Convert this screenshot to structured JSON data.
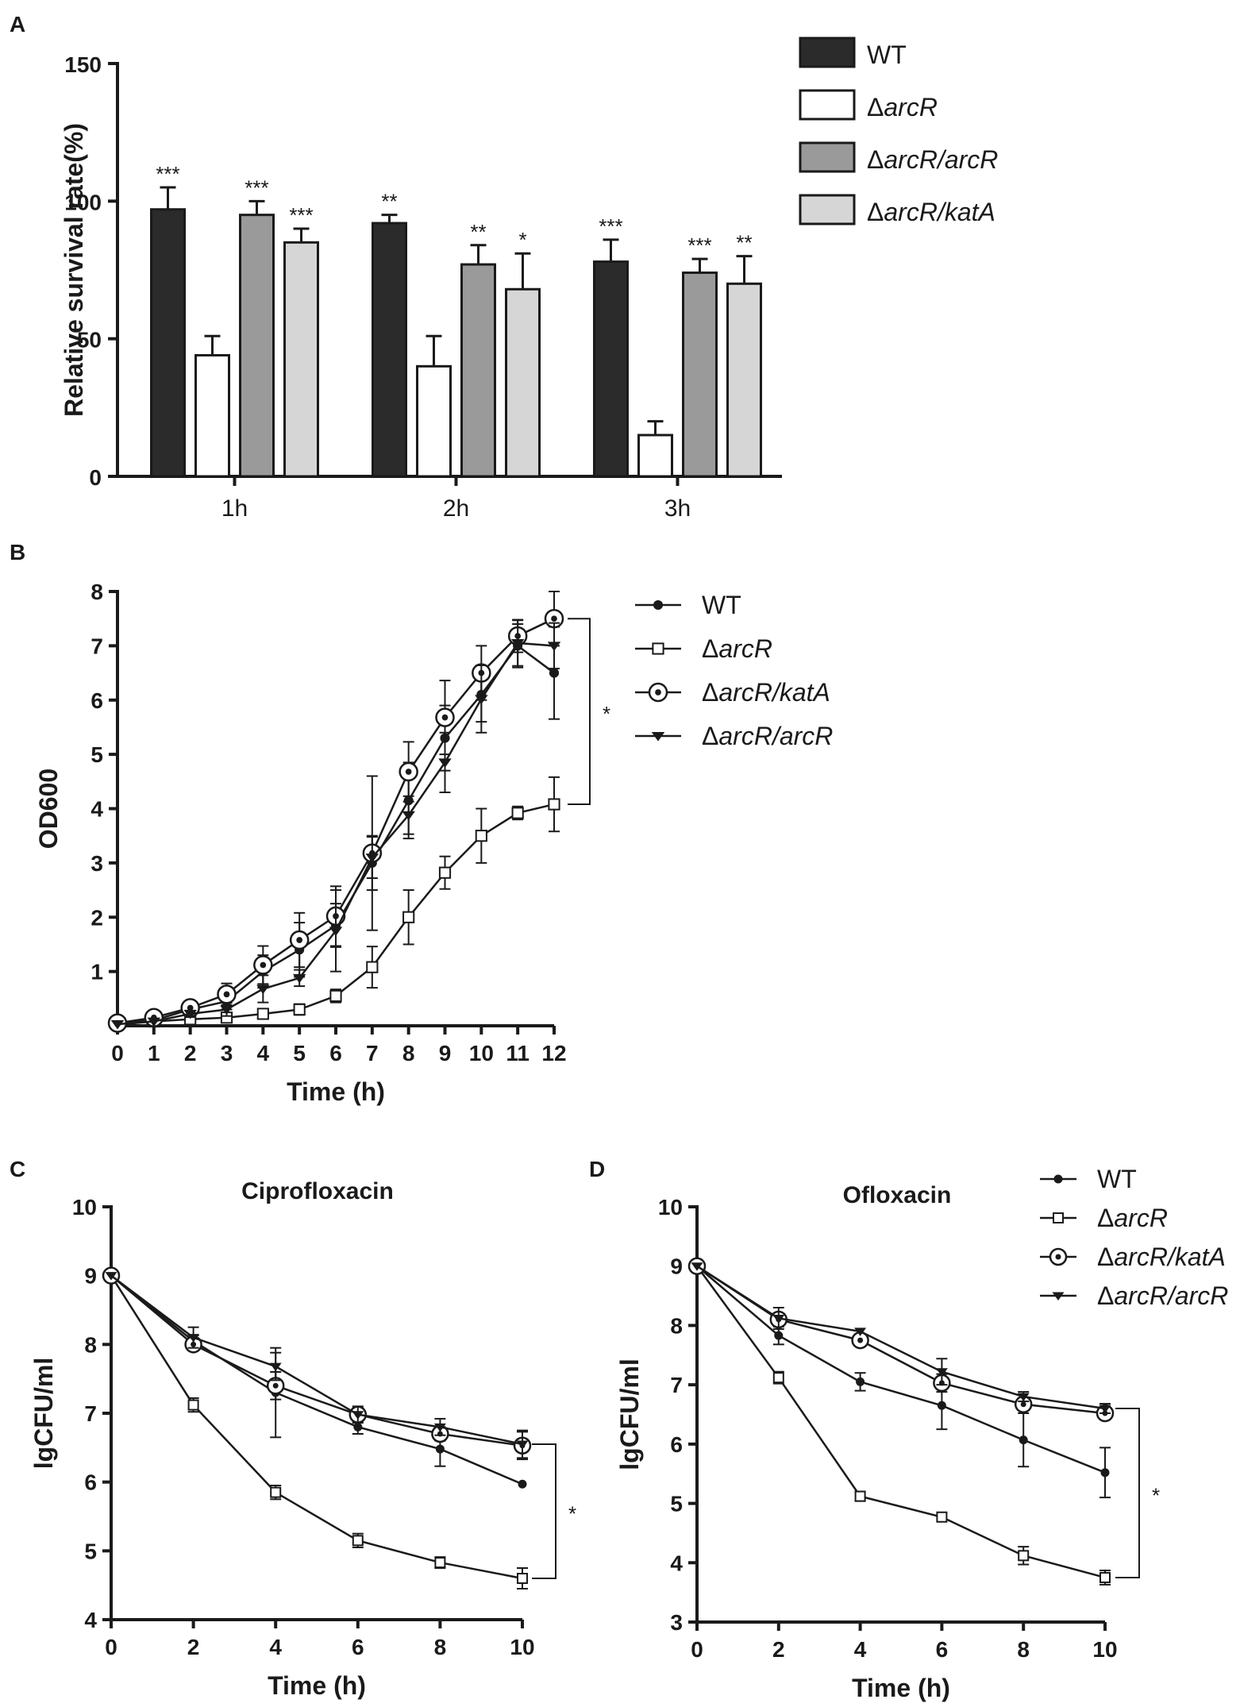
{
  "figure": {
    "panels": {
      "A": "A",
      "B": "B",
      "C": "C",
      "D": "D"
    }
  },
  "chart_data": [
    {
      "id": "A",
      "type": "bar",
      "ylabel": "Relative survival rate(%)",
      "xlabel": "",
      "ylim": [
        0,
        150
      ],
      "yticks": [
        "0",
        "50",
        "100",
        "150"
      ],
      "categories": [
        "1h",
        "2h",
        "3h"
      ],
      "legend_position": "top-right",
      "series": [
        {
          "name": "WT",
          "color": "#2b2b2b",
          "values": [
            97,
            92,
            78
          ],
          "errors": [
            8,
            3,
            8
          ],
          "sig": [
            "***",
            "**",
            "***"
          ]
        },
        {
          "name": "ΔarcR",
          "color": "#ffffff",
          "values": [
            44,
            40,
            15
          ],
          "errors": [
            7,
            11,
            5
          ],
          "sig": [
            "",
            "",
            ""
          ]
        },
        {
          "name": "ΔarcR/arcR",
          "color": "#9a9a9a",
          "values": [
            95,
            77,
            74
          ],
          "errors": [
            5,
            7,
            5
          ],
          "sig": [
            "***",
            "**",
            "***"
          ]
        },
        {
          "name": "ΔarcR/katA",
          "color": "#d6d6d6",
          "values": [
            85,
            68,
            70
          ],
          "errors": [
            5,
            13,
            10
          ],
          "sig": [
            "***",
            "*",
            "**"
          ]
        }
      ]
    },
    {
      "id": "B",
      "type": "line",
      "xlabel": "Time (h)",
      "ylabel": "OD600",
      "xlim": [
        0,
        12
      ],
      "ylim": [
        0,
        8
      ],
      "xticks": [
        "0",
        "1",
        "2",
        "3",
        "4",
        "5",
        "6",
        "7",
        "8",
        "9",
        "10",
        "11",
        "12"
      ],
      "yticks": [
        "1",
        "2",
        "3",
        "4",
        "5",
        "6",
        "7",
        "8"
      ],
      "x": [
        0,
        1,
        2,
        3,
        4,
        5,
        6,
        7,
        8,
        9,
        10,
        11,
        12
      ],
      "legend_position": "top-right",
      "significance": "*",
      "series": [
        {
          "name": "WT",
          "marker": "dot",
          "values": [
            0.05,
            0.1,
            0.3,
            0.45,
            1.0,
            1.4,
            1.85,
            3.0,
            4.15,
            5.3,
            6.1,
            7.0,
            6.5
          ],
          "errors": [
            0.02,
            0.05,
            0.08,
            0.15,
            0.3,
            0.5,
            0.4,
            0.5,
            0.7,
            0.6,
            0.5,
            0.4,
            0.85
          ]
        },
        {
          "name": "ΔarcR",
          "marker": "square",
          "values": [
            0.02,
            0.08,
            0.12,
            0.15,
            0.22,
            0.3,
            0.55,
            1.08,
            2.0,
            2.82,
            3.5,
            3.92,
            4.08
          ],
          "errors": [
            0.02,
            0.03,
            0.05,
            0.08,
            0.08,
            0.1,
            0.12,
            0.38,
            0.5,
            0.3,
            0.5,
            0.12,
            0.5
          ]
        },
        {
          "name": "ΔarcR/katA",
          "marker": "ring",
          "values": [
            0.05,
            0.15,
            0.33,
            0.58,
            1.12,
            1.58,
            2.02,
            3.18,
            4.68,
            5.68,
            6.5,
            7.18,
            7.5
          ],
          "errors": [
            0.02,
            0.05,
            0.08,
            0.2,
            0.35,
            0.5,
            0.55,
            1.42,
            0.55,
            0.68,
            0.5,
            0.3,
            0.5
          ]
        },
        {
          "name": "ΔarcR/arcR",
          "marker": "triangle",
          "values": [
            0.03,
            0.08,
            0.22,
            0.3,
            0.68,
            0.88,
            1.75,
            3.1,
            3.88,
            4.85,
            6.02,
            7.05,
            7.0
          ],
          "errors": [
            0.02,
            0.04,
            0.06,
            0.12,
            0.25,
            0.15,
            0.75,
            0.38,
            0.35,
            0.55,
            0.62,
            0.42,
            0.42
          ]
        }
      ]
    },
    {
      "id": "C",
      "type": "line",
      "title": "Ciprofloxacin",
      "xlabel": "Time (h)",
      "ylabel": "lgCFU/ml",
      "xlim": [
        0,
        10
      ],
      "ylim": [
        4,
        10
      ],
      "xticks": [
        "0",
        "2",
        "4",
        "6",
        "8",
        "10"
      ],
      "yticks": [
        "4",
        "5",
        "6",
        "7",
        "8",
        "9",
        "10"
      ],
      "x": [
        0,
        2,
        4,
        6,
        8,
        10
      ],
      "significance": "*",
      "series": [
        {
          "name": "WT",
          "marker": "dot",
          "values": [
            9.0,
            8.05,
            7.3,
            6.8,
            6.48,
            5.97
          ],
          "errors": [
            0.03,
            0.08,
            0.65,
            0.1,
            0.25,
            0.03
          ]
        },
        {
          "name": "ΔarcR",
          "marker": "square",
          "values": [
            9.0,
            7.12,
            5.85,
            5.15,
            4.83,
            4.6
          ],
          "errors": [
            0.03,
            0.1,
            0.1,
            0.1,
            0.08,
            0.15
          ]
        },
        {
          "name": "ΔarcR/katA",
          "marker": "ring",
          "values": [
            9.0,
            8.0,
            7.4,
            6.98,
            6.7,
            6.53
          ],
          "errors": [
            0.03,
            0.08,
            0.2,
            0.1,
            0.1,
            0.2
          ]
        },
        {
          "name": "ΔarcR/arcR",
          "marker": "triangle",
          "values": [
            9.0,
            8.1,
            7.68,
            6.98,
            6.8,
            6.55
          ],
          "errors": [
            0.03,
            0.15,
            0.2,
            0.12,
            0.12,
            0.2
          ]
        }
      ]
    },
    {
      "id": "D",
      "type": "line",
      "title": "Ofloxacin",
      "xlabel": "Time (h)",
      "ylabel": "lgCFU/ml",
      "xlim": [
        0,
        10
      ],
      "ylim": [
        3,
        10
      ],
      "xticks": [
        "0",
        "2",
        "4",
        "6",
        "8",
        "10"
      ],
      "yticks": [
        "3",
        "4",
        "5",
        "6",
        "7",
        "8",
        "9",
        "10"
      ],
      "x": [
        0,
        2,
        4,
        6,
        8,
        10
      ],
      "legend_position": "top-right",
      "significance": "*",
      "series": [
        {
          "name": "WT",
          "marker": "dot",
          "values": [
            9.0,
            7.83,
            7.05,
            6.65,
            6.07,
            5.52
          ],
          "errors": [
            0.03,
            0.15,
            0.15,
            0.4,
            0.45,
            0.42
          ]
        },
        {
          "name": "ΔarcR",
          "marker": "square",
          "values": [
            9.0,
            7.12,
            5.12,
            4.77,
            4.12,
            3.75
          ],
          "errors": [
            0.03,
            0.1,
            0.08,
            0.05,
            0.15,
            0.12
          ]
        },
        {
          "name": "ΔarcR/katA",
          "marker": "ring",
          "values": [
            9.0,
            8.1,
            7.75,
            7.03,
            6.67,
            6.52
          ],
          "errors": [
            0.03,
            0.1,
            0.1,
            0.15,
            0.1,
            0.1
          ]
        },
        {
          "name": "ΔarcR/arcR",
          "marker": "triangle",
          "values": [
            9.0,
            8.12,
            7.9,
            7.22,
            6.8,
            6.6
          ],
          "errors": [
            0.03,
            0.18,
            0.05,
            0.22,
            0.08,
            0.08
          ]
        }
      ]
    }
  ]
}
